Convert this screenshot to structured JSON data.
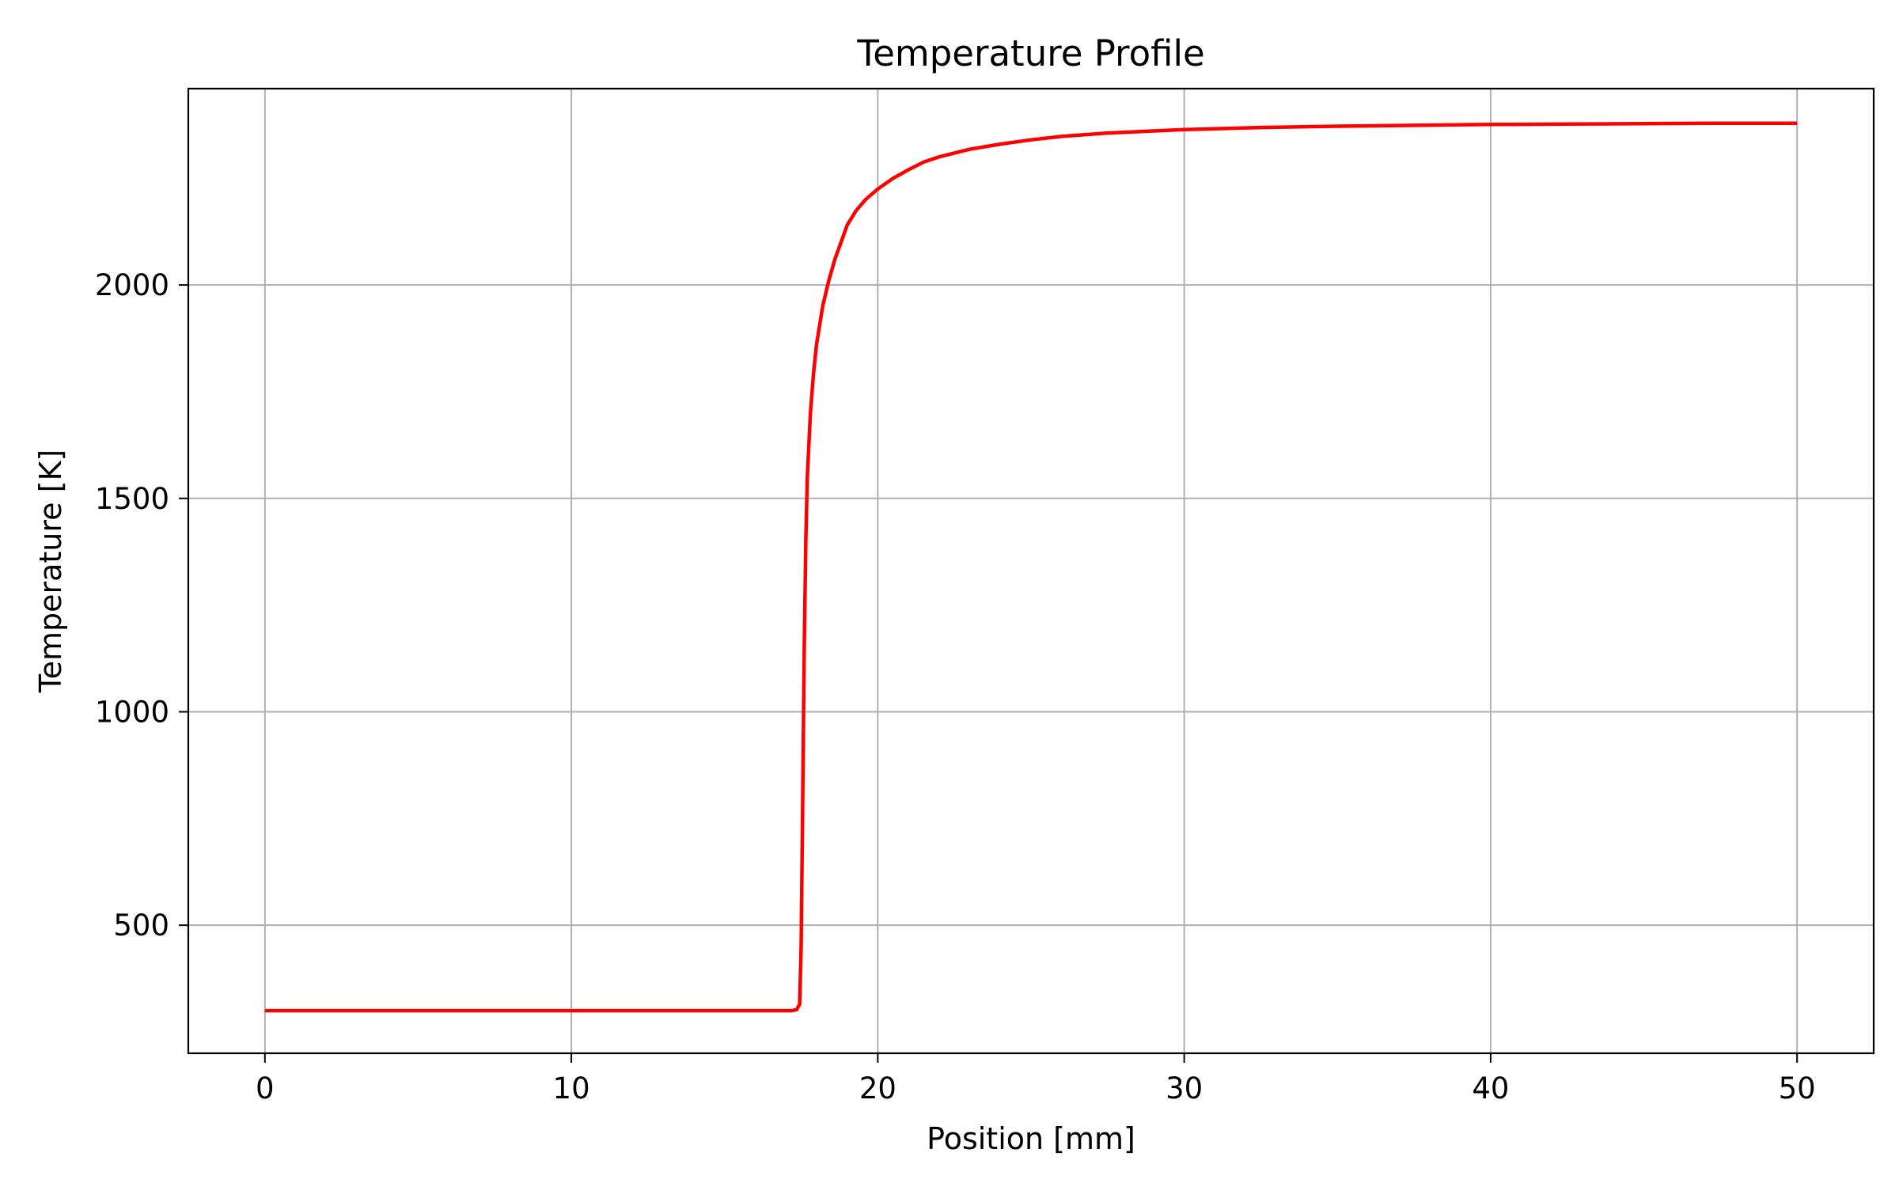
{
  "chart_data": {
    "type": "line",
    "title": "Temperature Profile",
    "xlabel": "Position [mm]",
    "ylabel": "Temperature [K]",
    "xlim": [
      -2.5,
      52.5
    ],
    "ylim": [
      200,
      2460
    ],
    "x_ticks": [
      0,
      10,
      20,
      30,
      40,
      50
    ],
    "y_ticks": [
      500,
      1000,
      1500,
      2000
    ],
    "grid": true,
    "series": [
      {
        "color": "#ff0000",
        "x": [
          0,
          5,
          10,
          15,
          17.2,
          17.35,
          17.45,
          17.5,
          17.55,
          17.6,
          17.65,
          17.7,
          17.8,
          17.9,
          18.0,
          18.2,
          18.4,
          18.6,
          18.8,
          19.0,
          19.3,
          19.6,
          20.0,
          20.5,
          21.0,
          21.5,
          22.0,
          23.0,
          24.0,
          25.0,
          26.0,
          27.5,
          30.0,
          32.5,
          35.0,
          37.5,
          40.0,
          42.5,
          45.0,
          47.5,
          50.0
        ],
        "y": [
          300,
          300,
          300,
          300,
          300,
          302,
          315,
          450,
          800,
          1150,
          1400,
          1550,
          1700,
          1790,
          1860,
          1950,
          2010,
          2060,
          2100,
          2140,
          2175,
          2200,
          2225,
          2250,
          2270,
          2288,
          2300,
          2318,
          2330,
          2340,
          2348,
          2356,
          2364,
          2369,
          2372,
          2374,
          2376,
          2377,
          2378,
          2379,
          2379
        ]
      }
    ]
  }
}
